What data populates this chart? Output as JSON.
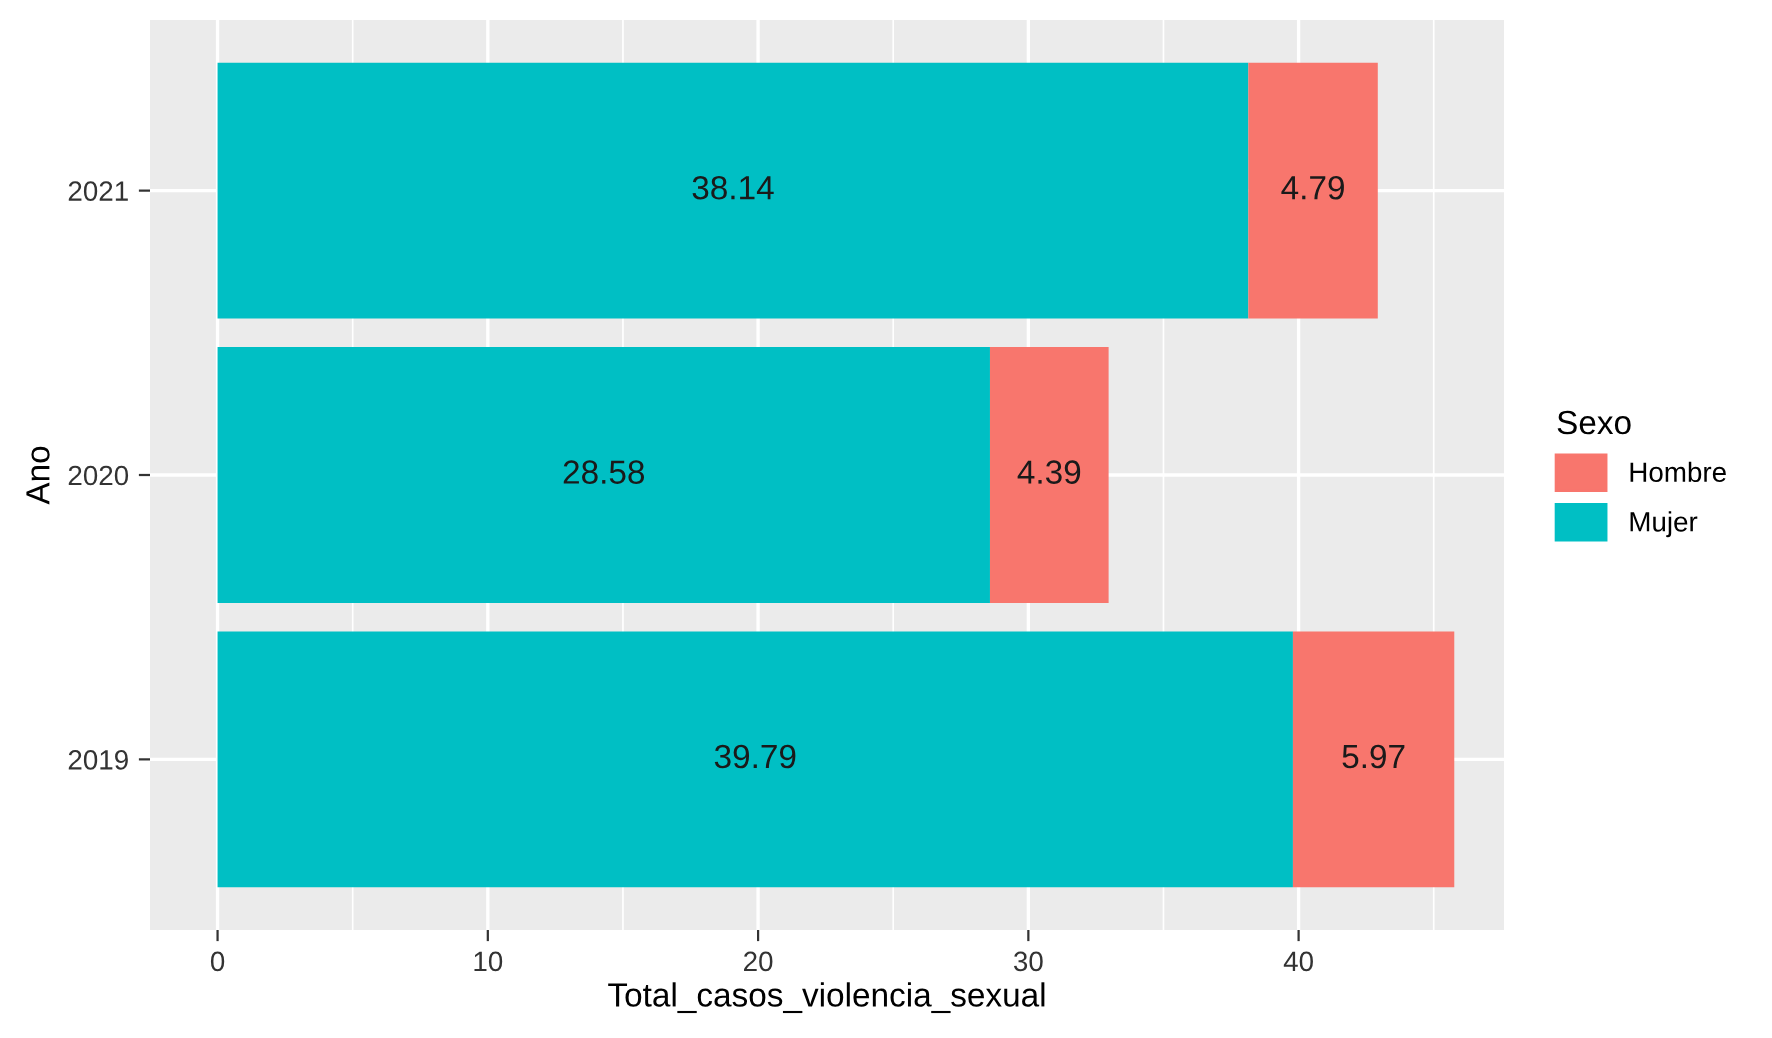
{
  "chart_data": {
    "type": "bar",
    "orientation": "horizontal",
    "stacked": true,
    "xlabel": "Total_casos_violencia_sexual",
    "ylabel": "Ano",
    "legend_title": "Sexo",
    "categories": [
      "2021",
      "2020",
      "2019"
    ],
    "series": [
      {
        "name": "Mujer",
        "color": "#00bfc4",
        "values": [
          38.14,
          28.58,
          39.79
        ]
      },
      {
        "name": "Hombre",
        "color": "#f8766d",
        "values": [
          4.79,
          4.39,
          5.97
        ]
      }
    ],
    "xlim": [
      -2.5,
      47.6
    ],
    "xticks": [
      0,
      10,
      20,
      30,
      40
    ],
    "grid": true,
    "legend": "right",
    "data_labels": true
  }
}
